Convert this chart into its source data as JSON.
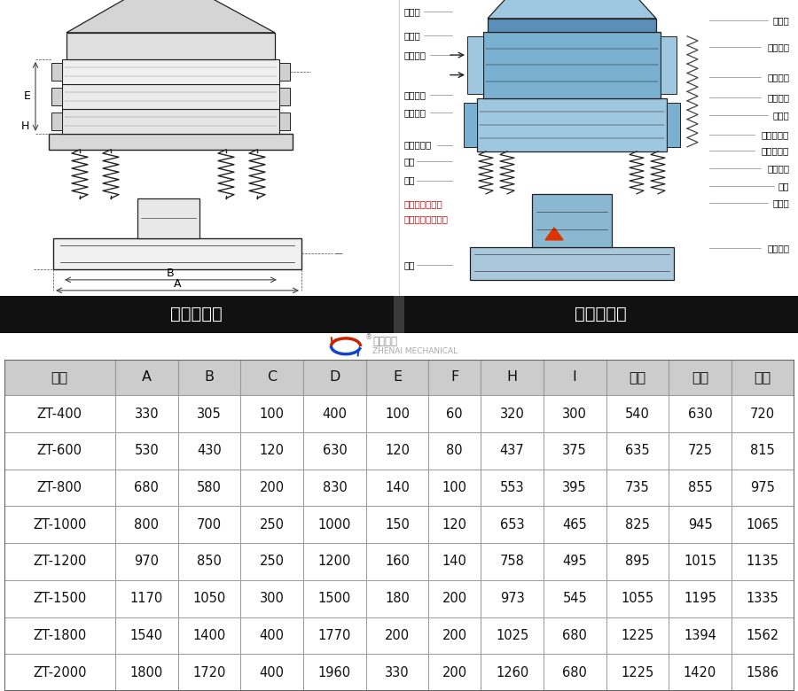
{
  "title_left": "外形尺寸图",
  "title_right": "一般结构图",
  "header_bg": "#111111",
  "header_text_color": "#ffffff",
  "table_header": [
    "型号",
    "A",
    "B",
    "C",
    "D",
    "E",
    "F",
    "H",
    "I",
    "一层",
    "二层",
    "三层"
  ],
  "table_header_bg": "#cccccc",
  "table_border_color": "#999999",
  "table_data": [
    [
      "ZT-400",
      "330",
      "305",
      "100",
      "400",
      "100",
      "60",
      "320",
      "300",
      "540",
      "630",
      "720"
    ],
    [
      "ZT-600",
      "530",
      "430",
      "120",
      "630",
      "120",
      "80",
      "437",
      "375",
      "635",
      "725",
      "815"
    ],
    [
      "ZT-800",
      "680",
      "580",
      "200",
      "830",
      "140",
      "100",
      "553",
      "395",
      "735",
      "855",
      "975"
    ],
    [
      "ZT-1000",
      "800",
      "700",
      "250",
      "1000",
      "150",
      "120",
      "653",
      "465",
      "825",
      "945",
      "1065"
    ],
    [
      "ZT-1200",
      "970",
      "850",
      "250",
      "1200",
      "160",
      "140",
      "758",
      "495",
      "895",
      "1015",
      "1135"
    ],
    [
      "ZT-1500",
      "1170",
      "1050",
      "300",
      "1500",
      "180",
      "200",
      "973",
      "545",
      "1055",
      "1195",
      "1335"
    ],
    [
      "ZT-1800",
      "1540",
      "1400",
      "400",
      "1770",
      "200",
      "200",
      "1025",
      "680",
      "1225",
      "1394",
      "1562"
    ],
    [
      "ZT-2000",
      "1800",
      "1720",
      "400",
      "1960",
      "330",
      "200",
      "1260",
      "680",
      "1225",
      "1420",
      "1586"
    ]
  ],
  "col_widths": [
    1.6,
    0.9,
    0.9,
    0.9,
    0.9,
    0.9,
    0.75,
    0.9,
    0.9,
    0.9,
    0.9,
    0.9
  ],
  "fig_bg": "#ffffff",
  "cell_text_fontsize": 10.5,
  "header_fontsize": 11.5,
  "title_fontsize": 14,
  "top_bg": "#ffffff",
  "dim_color": "#333333",
  "lc": "#333333",
  "right_labels": [
    [
      0.93,
      "进料口"
    ],
    [
      0.84,
      "辅助筛网"
    ],
    [
      0.74,
      "辅助筛网"
    ],
    [
      0.67,
      "筛网法兰"
    ],
    [
      0.61,
      "橡胶球"
    ],
    [
      0.545,
      "球形清洁板"
    ],
    [
      0.49,
      "纵外重锤板"
    ],
    [
      0.43,
      "上部重锤"
    ],
    [
      0.37,
      "振体"
    ],
    [
      0.315,
      "电动机"
    ],
    [
      0.16,
      "下部重锤"
    ]
  ],
  "left_labels": [
    [
      0.96,
      "防尘盖"
    ],
    [
      0.88,
      "压紧环"
    ],
    [
      0.815,
      "顶部框架"
    ],
    [
      0.68,
      "中部框架"
    ],
    [
      0.62,
      "底部框架"
    ],
    [
      0.51,
      "小尺寸排料"
    ],
    [
      0.455,
      "束环"
    ],
    [
      0.39,
      "弹簧"
    ],
    [
      0.105,
      "底座"
    ]
  ],
  "red_labels": [
    [
      0.31,
      "运输用固定螺栓"
    ],
    [
      0.26,
      "试机时去掉！！！"
    ]
  ],
  "logo_text1": "振泰机械",
  "logo_text2": "ZHENAI MECHANICAL"
}
